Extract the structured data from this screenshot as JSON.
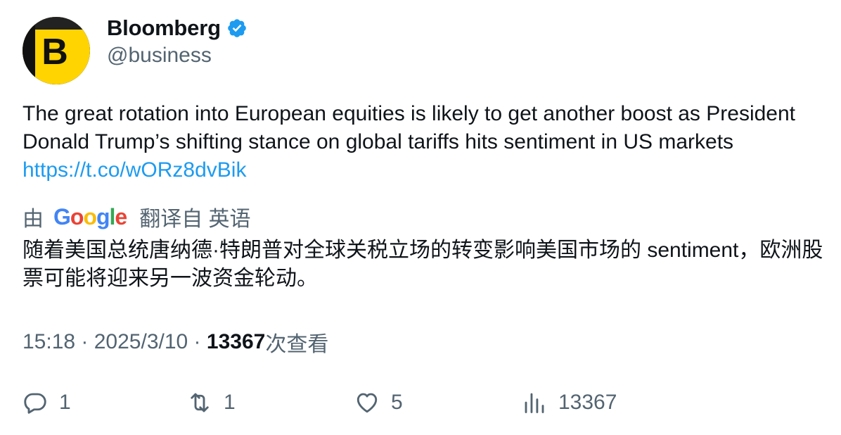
{
  "author": {
    "display_name": "Bloomberg",
    "handle": "@business",
    "avatar_letter": "B",
    "avatar_color": "#ffd400",
    "verified_color": "#1d9bf0"
  },
  "tweet": {
    "text": "The great rotation into European equities is likely to get another boost as President Donald Trump’s shifting stance on global tariffs hits sentiment in US markets ",
    "link": "https://t.co/wORz8dvBik"
  },
  "translation": {
    "prefix": "由",
    "google_letters": [
      "G",
      "o",
      "o",
      "g",
      "l",
      "e"
    ],
    "google_colors": [
      "#4285f4",
      "#ea4335",
      "#fbbc05",
      "#4285f4",
      "#34a853",
      "#ea4335"
    ],
    "suffix": "翻译自 英语",
    "text": "随着美国总统唐纳德·特朗普对全球关税立场的转变影响美国市场的 sentiment，欧洲股票可能将迎来另一波资金轮动。"
  },
  "meta": {
    "time": "15:18",
    "separator": " · ",
    "date": "2025/3/10",
    "views_count": "13367",
    "views_label": "次查看"
  },
  "actions": {
    "reply_count": "1",
    "retweet_count": "1",
    "like_count": "5",
    "views_count": "13367"
  },
  "colors": {
    "text": "#0f1419",
    "secondary": "#536471",
    "link": "#1d9bf0"
  }
}
